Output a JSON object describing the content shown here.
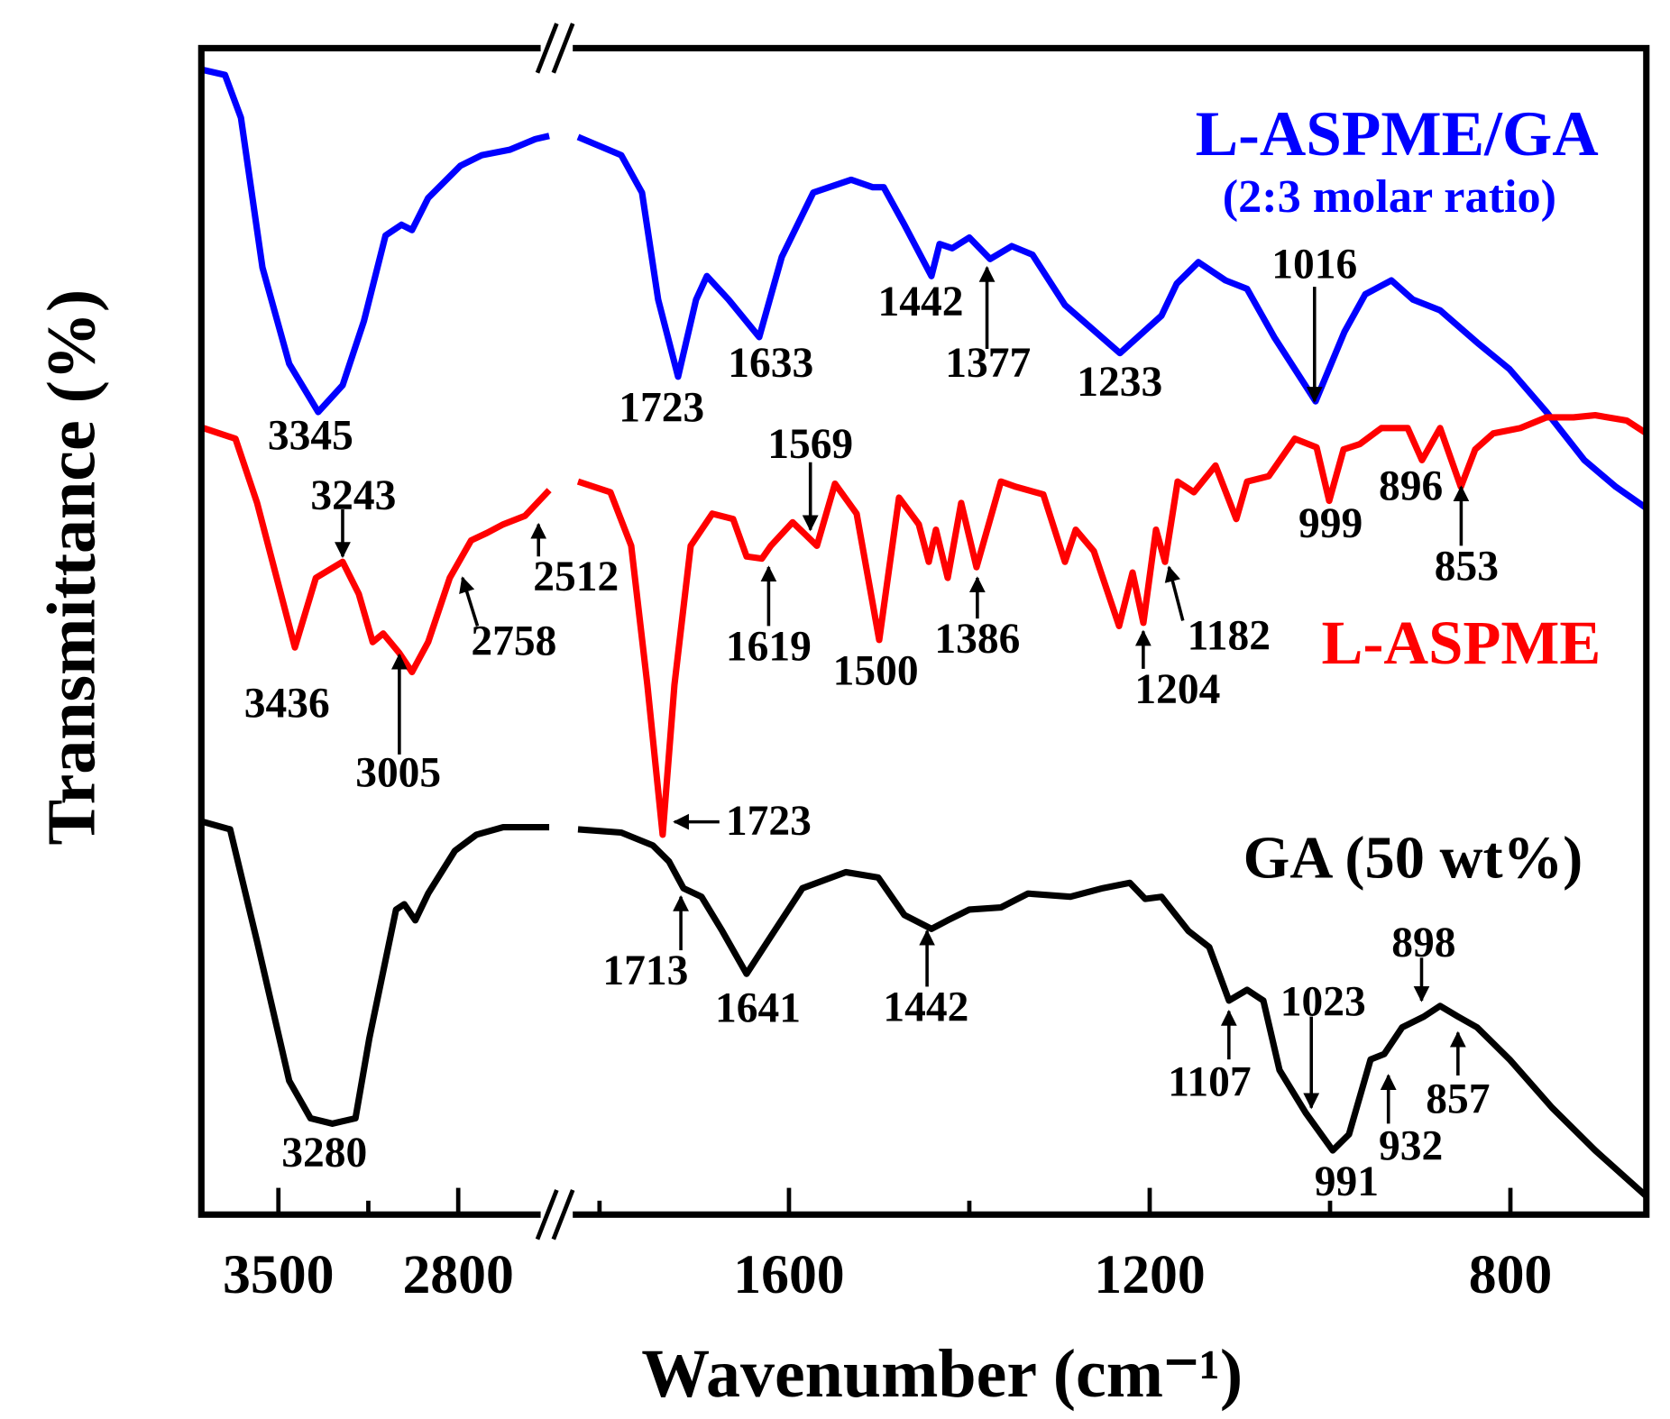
{
  "chart_data": {
    "type": "line",
    "title": "",
    "xlabel": "Wavenumber (cm⁻¹)",
    "ylabel": "Transmittance (%)",
    "x_reversed": true,
    "x_break": [
      2446,
      1834
    ],
    "xlim_left_segment": [
      3800,
      2446
    ],
    "xlim_right_segment": [
      1834,
      649
    ],
    "ylim": [
      0,
      109
    ],
    "grid": false,
    "xticks": [
      {
        "value": 3500,
        "label": "3500"
      },
      {
        "value": 2800,
        "label": "2800"
      },
      {
        "value": 1600,
        "label": "1600"
      },
      {
        "value": 1200,
        "label": "1200"
      },
      {
        "value": 800,
        "label": "800"
      }
    ],
    "minor_xticks": [
      3150,
      1400,
      1000
    ],
    "series": [
      {
        "name": "L-ASPME/GA",
        "subtitle": "(2:3 molar ratio)",
        "color": "#0000ff",
        "points": [
          [
            3800,
            107.0
          ],
          [
            3708,
            106.5
          ],
          [
            3646,
            102.5
          ],
          [
            3562,
            88.5
          ],
          [
            3458,
            79.5
          ],
          [
            3345,
            75.0
          ],
          [
            3250,
            77.5
          ],
          [
            3167,
            83.5
          ],
          [
            3083,
            91.5
          ],
          [
            3021,
            92.5
          ],
          [
            2980,
            92.0
          ],
          [
            2917,
            95.0
          ],
          [
            2792,
            98.0
          ],
          [
            2708,
            99.0
          ],
          [
            2600,
            99.5
          ],
          [
            2500,
            100.5
          ],
          [
            2446,
            100.8
          ],
          [
            1834,
            100.7
          ],
          [
            1786,
            99.0
          ],
          [
            1763,
            95.5
          ],
          [
            1745,
            85.5
          ],
          [
            1723,
            78.3
          ],
          [
            1703,
            85.5
          ],
          [
            1691,
            87.7
          ],
          [
            1667,
            85.5
          ],
          [
            1633,
            82.0
          ],
          [
            1608,
            89.5
          ],
          [
            1573,
            95.5
          ],
          [
            1531,
            96.7
          ],
          [
            1507,
            96.0
          ],
          [
            1495,
            96.0
          ],
          [
            1472,
            92.5
          ],
          [
            1442,
            87.7
          ],
          [
            1433,
            90.7
          ],
          [
            1419,
            90.3
          ],
          [
            1400,
            91.3
          ],
          [
            1377,
            89.3
          ],
          [
            1353,
            90.5
          ],
          [
            1330,
            89.7
          ],
          [
            1294,
            85.0
          ],
          [
            1233,
            80.5
          ],
          [
            1187,
            84.0
          ],
          [
            1170,
            87.0
          ],
          [
            1146,
            89.0
          ],
          [
            1116,
            87.3
          ],
          [
            1092,
            86.5
          ],
          [
            1062,
            82.0
          ],
          [
            1016,
            76.0
          ],
          [
            984,
            82.5
          ],
          [
            961,
            86.0
          ],
          [
            932,
            87.3
          ],
          [
            908,
            85.5
          ],
          [
            878,
            84.5
          ],
          [
            837,
            81.5
          ],
          [
            801,
            79.0
          ],
          [
            760,
            75.0
          ],
          [
            718,
            70.5
          ],
          [
            683,
            68.0
          ],
          [
            649,
            66.0
          ]
        ]
      },
      {
        "name": "L-ASPME",
        "color": "#ff0000",
        "points": [
          [
            3792,
            73.5
          ],
          [
            3667,
            72.5
          ],
          [
            3583,
            66.5
          ],
          [
            3436,
            53.0
          ],
          [
            3354,
            59.5
          ],
          [
            3250,
            61.0
          ],
          [
            3187,
            58.0
          ],
          [
            3133,
            53.5
          ],
          [
            3092,
            54.3
          ],
          [
            3030,
            52.5
          ],
          [
            2980,
            50.7
          ],
          [
            2917,
            53.5
          ],
          [
            2833,
            59.5
          ],
          [
            2750,
            63.0
          ],
          [
            2688,
            63.7
          ],
          [
            2625,
            64.5
          ],
          [
            2540,
            65.3
          ],
          [
            2446,
            67.7
          ],
          [
            1834,
            68.5
          ],
          [
            1798,
            67.5
          ],
          [
            1775,
            62.5
          ],
          [
            1757,
            49.5
          ],
          [
            1740,
            35.5
          ],
          [
            1727,
            49.5
          ],
          [
            1709,
            62.5
          ],
          [
            1685,
            65.5
          ],
          [
            1662,
            65.0
          ],
          [
            1647,
            61.5
          ],
          [
            1630,
            61.3
          ],
          [
            1620,
            62.5
          ],
          [
            1596,
            64.7
          ],
          [
            1569,
            62.5
          ],
          [
            1549,
            68.3
          ],
          [
            1525,
            65.5
          ],
          [
            1500,
            53.7
          ],
          [
            1478,
            67.0
          ],
          [
            1456,
            64.5
          ],
          [
            1445,
            61.0
          ],
          [
            1437,
            64.0
          ],
          [
            1424,
            59.5
          ],
          [
            1409,
            66.5
          ],
          [
            1392,
            60.5
          ],
          [
            1365,
            68.5
          ],
          [
            1348,
            68.0
          ],
          [
            1318,
            67.3
          ],
          [
            1294,
            61.0
          ],
          [
            1282,
            64.0
          ],
          [
            1262,
            62.0
          ],
          [
            1234,
            55.0
          ],
          [
            1219,
            60.0
          ],
          [
            1207,
            55.3
          ],
          [
            1193,
            64.0
          ],
          [
            1183,
            61.0
          ],
          [
            1169,
            68.5
          ],
          [
            1151,
            67.5
          ],
          [
            1127,
            70.0
          ],
          [
            1104,
            65.0
          ],
          [
            1092,
            68.5
          ],
          [
            1068,
            69.0
          ],
          [
            1039,
            72.5
          ],
          [
            1015,
            71.7
          ],
          [
            1001,
            66.7
          ],
          [
            985,
            71.5
          ],
          [
            967,
            72.0
          ],
          [
            943,
            73.5
          ],
          [
            914,
            73.5
          ],
          [
            898,
            70.5
          ],
          [
            878,
            73.5
          ],
          [
            855,
            68.0
          ],
          [
            839,
            71.5
          ],
          [
            819,
            73.0
          ],
          [
            789,
            73.5
          ],
          [
            760,
            74.5
          ],
          [
            730,
            74.5
          ],
          [
            706,
            74.7
          ],
          [
            671,
            74.2
          ],
          [
            649,
            73.0
          ]
        ]
      },
      {
        "name": "GA (50 wt%)",
        "color": "#000000",
        "points": [
          [
            3792,
            36.7
          ],
          [
            3688,
            36.0
          ],
          [
            3583,
            25.5
          ],
          [
            3458,
            12.5
          ],
          [
            3375,
            9.0
          ],
          [
            3290,
            8.5
          ],
          [
            3200,
            9.0
          ],
          [
            3146,
            16.5
          ],
          [
            3042,
            28.5
          ],
          [
            3010,
            29.0
          ],
          [
            2967,
            27.5
          ],
          [
            2917,
            30.0
          ],
          [
            2813,
            34.0
          ],
          [
            2729,
            35.5
          ],
          [
            2625,
            36.2
          ],
          [
            2446,
            36.2
          ],
          [
            1834,
            36.0
          ],
          [
            1786,
            35.7
          ],
          [
            1751,
            34.5
          ],
          [
            1733,
            33.0
          ],
          [
            1717,
            30.5
          ],
          [
            1697,
            29.7
          ],
          [
            1674,
            26.5
          ],
          [
            1647,
            22.5
          ],
          [
            1620,
            26.0
          ],
          [
            1585,
            30.5
          ],
          [
            1537,
            32.0
          ],
          [
            1501,
            31.5
          ],
          [
            1472,
            28.0
          ],
          [
            1442,
            26.7
          ],
          [
            1424,
            27.5
          ],
          [
            1400,
            28.5
          ],
          [
            1365,
            28.7
          ],
          [
            1335,
            30.0
          ],
          [
            1288,
            29.7
          ],
          [
            1252,
            30.5
          ],
          [
            1222,
            31.0
          ],
          [
            1205,
            29.5
          ],
          [
            1187,
            29.7
          ],
          [
            1157,
            26.5
          ],
          [
            1134,
            25.0
          ],
          [
            1112,
            20.0
          ],
          [
            1092,
            21.0
          ],
          [
            1074,
            20.0
          ],
          [
            1056,
            13.5
          ],
          [
            1027,
            9.5
          ],
          [
            997,
            6.0
          ],
          [
            979,
            7.5
          ],
          [
            955,
            14.5
          ],
          [
            940,
            15.0
          ],
          [
            920,
            17.5
          ],
          [
            896,
            18.5
          ],
          [
            878,
            19.5
          ],
          [
            858,
            18.5
          ],
          [
            837,
            17.5
          ],
          [
            801,
            14.5
          ],
          [
            754,
            10.0
          ],
          [
            706,
            6.0
          ],
          [
            649,
            1.7
          ]
        ]
      }
    ],
    "annotations": [
      {
        "series": "L-ASPME/GA",
        "label": "3345"
      },
      {
        "series": "L-ASPME/GA",
        "label": "1723"
      },
      {
        "series": "L-ASPME/GA",
        "label": "1633"
      },
      {
        "series": "L-ASPME/GA",
        "label": "1442"
      },
      {
        "series": "L-ASPME/GA",
        "label": "1377"
      },
      {
        "series": "L-ASPME/GA",
        "label": "1233"
      },
      {
        "series": "L-ASPME/GA",
        "label": "1016"
      },
      {
        "series": "L-ASPME",
        "label": "3243"
      },
      {
        "series": "L-ASPME",
        "label": "3436"
      },
      {
        "series": "L-ASPME",
        "label": "3005"
      },
      {
        "series": "L-ASPME",
        "label": "2758"
      },
      {
        "series": "L-ASPME",
        "label": "2512"
      },
      {
        "series": "L-ASPME",
        "label": "1569"
      },
      {
        "series": "L-ASPME",
        "label": "1619"
      },
      {
        "series": "L-ASPME",
        "label": "1500"
      },
      {
        "series": "L-ASPME",
        "label": "1386"
      },
      {
        "series": "L-ASPME",
        "label": "1204"
      },
      {
        "series": "L-ASPME",
        "label": "1182"
      },
      {
        "series": "L-ASPME",
        "label": "999"
      },
      {
        "series": "L-ASPME",
        "label": "896"
      },
      {
        "series": "L-ASPME",
        "label": "853"
      },
      {
        "series": "L-ASPME",
        "label": "1723"
      },
      {
        "series": "GA (50 wt%)",
        "label": "1713"
      },
      {
        "series": "GA (50 wt%)",
        "label": "1641"
      },
      {
        "series": "GA (50 wt%)",
        "label": "1442"
      },
      {
        "series": "GA (50 wt%)",
        "label": "3280"
      },
      {
        "series": "GA (50 wt%)",
        "label": "1107"
      },
      {
        "series": "GA (50 wt%)",
        "label": "1023"
      },
      {
        "series": "GA (50 wt%)",
        "label": "991"
      },
      {
        "series": "GA (50 wt%)",
        "label": "932"
      },
      {
        "series": "GA (50 wt%)",
        "label": "898"
      },
      {
        "series": "GA (50 wt%)",
        "label": "857"
      }
    ]
  }
}
